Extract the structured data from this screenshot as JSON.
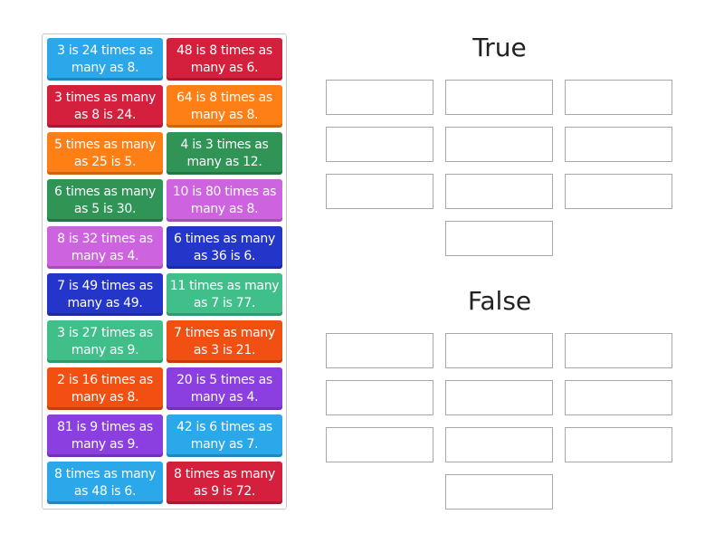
{
  "tiles": [
    {
      "text": "3 is 24 times as many as 8.",
      "color": "#2ba8e9"
    },
    {
      "text": "48 is 8 times as many as 6.",
      "color": "#d4203c"
    },
    {
      "text": "3 times as many as 8 is 24.",
      "color": "#d4203c"
    },
    {
      "text": "64 is 8 times as many as 8.",
      "color": "#ff7f17"
    },
    {
      "text": "5 times as many as 25 is 5.",
      "color": "#ff7f17"
    },
    {
      "text": "4 is 3 times as many as 12.",
      "color": "#2f9455"
    },
    {
      "text": "6 times as many as 5 is 30.",
      "color": "#2f9455"
    },
    {
      "text": "10 is 80 times as many as 8.",
      "color": "#cd63de"
    },
    {
      "text": "8 is 32 times as many as 4.",
      "color": "#cd63de"
    },
    {
      "text": "6 times as many as 36 is 6.",
      "color": "#2336c9"
    },
    {
      "text": "7 is 49 times as many as 49.",
      "color": "#2336c9"
    },
    {
      "text": "11 times as many as 7 is 77.",
      "color": "#40bf8b"
    },
    {
      "text": "3 is 27 times as many as 9.",
      "color": "#40bf8b"
    },
    {
      "text": "7 times as many as 3 is 21.",
      "color": "#f24f12"
    },
    {
      "text": "2 is 16 times as many as 8.",
      "color": "#f24f12"
    },
    {
      "text": "20 is 5 times as many as 4.",
      "color": "#8b3fe0"
    },
    {
      "text": "81 is 9 times as many as 9.",
      "color": "#8b3fe0"
    },
    {
      "text": "42 is 6 times as many as 7.",
      "color": "#2ba8e9"
    },
    {
      "text": "8 times as many as 48 is 6.",
      "color": "#2ba8e9"
    },
    {
      "text": "8 times as many as 9 is 72.",
      "color": "#d4203c"
    }
  ],
  "groups": [
    {
      "title": "True",
      "slots": 10
    },
    {
      "title": "False",
      "slots": 10
    }
  ]
}
